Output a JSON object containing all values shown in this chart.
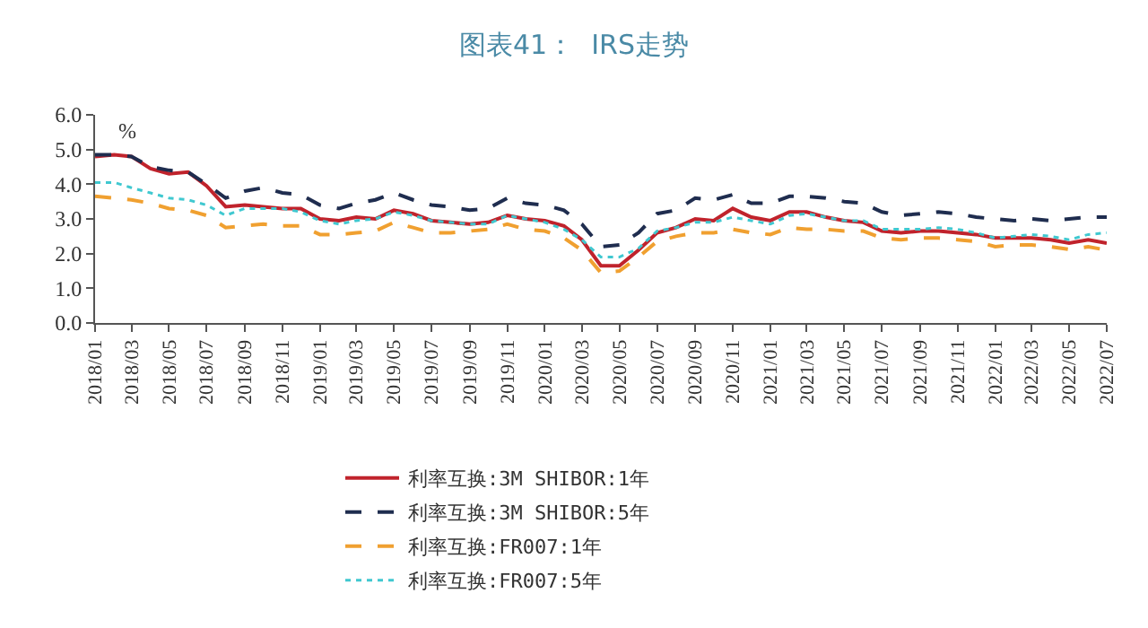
{
  "chart_data": {
    "type": "line",
    "title": "图表41：  IRS走势",
    "ylabel": "%",
    "x": [
      "2018-01",
      "2018-02",
      "2018-03",
      "2018-04",
      "2018-05",
      "2018-06",
      "2018-07",
      "2018-08",
      "2018-09",
      "2018-10",
      "2018-11",
      "2018-12",
      "2019-01",
      "2019-02",
      "2019-03",
      "2019-04",
      "2019-05",
      "2019-06",
      "2019-07",
      "2019-08",
      "2019-09",
      "2019-10",
      "2019-11",
      "2019-12",
      "2020-01",
      "2020-02",
      "2020-03",
      "2020-04",
      "2020-05",
      "2020-06",
      "2020-07",
      "2020-08",
      "2020-09",
      "2020-10",
      "2020-11",
      "2020-12",
      "2021-01",
      "2021-02",
      "2021-03",
      "2021-04",
      "2021-05",
      "2021-06",
      "2021-07",
      "2021-08",
      "2021-09",
      "2021-10",
      "2021-11",
      "2021-12",
      "2022-01",
      "2022-02",
      "2022-03",
      "2022-04",
      "2022-05",
      "2022-06",
      "2022-07"
    ],
    "series": [
      {
        "name": "利率互换:3M SHIBOR:1年",
        "color": "#c0232c",
        "line_style": "solid",
        "values": [
          4.8,
          4.85,
          4.8,
          4.45,
          4.3,
          4.35,
          3.95,
          3.35,
          3.4,
          3.35,
          3.3,
          3.3,
          3.0,
          2.95,
          3.05,
          3.0,
          3.25,
          3.15,
          2.95,
          2.9,
          2.85,
          2.9,
          3.1,
          3.0,
          2.95,
          2.8,
          2.4,
          1.65,
          1.65,
          2.1,
          2.6,
          2.75,
          3.0,
          2.95,
          3.3,
          3.05,
          2.95,
          3.2,
          3.2,
          3.05,
          2.95,
          2.9,
          2.65,
          2.6,
          2.65,
          2.65,
          2.6,
          2.55,
          2.45,
          2.45,
          2.45,
          2.4,
          2.3,
          2.4,
          2.3
        ]
      },
      {
        "name": "利率互换:3M SHIBOR:5年",
        "color": "#1f2d4f",
        "line_style": "dashed",
        "values": [
          4.85,
          4.85,
          4.8,
          4.5,
          4.4,
          4.35,
          4.0,
          3.6,
          3.8,
          3.9,
          3.75,
          3.7,
          3.4,
          3.3,
          3.45,
          3.55,
          3.75,
          3.55,
          3.4,
          3.35,
          3.25,
          3.3,
          3.6,
          3.45,
          3.4,
          3.25,
          2.85,
          2.2,
          2.25,
          2.6,
          3.15,
          3.25,
          3.6,
          3.55,
          3.7,
          3.45,
          3.45,
          3.65,
          3.65,
          3.6,
          3.5,
          3.45,
          3.2,
          3.1,
          3.15,
          3.2,
          3.15,
          3.05,
          3.0,
          2.95,
          3.0,
          2.95,
          3.0,
          3.05,
          3.05
        ]
      },
      {
        "name": "利率互换:FR007:1年",
        "color": "#f0a030",
        "line_style": "dashed",
        "values": [
          3.65,
          3.6,
          3.55,
          3.45,
          3.3,
          3.25,
          3.1,
          2.75,
          2.8,
          2.85,
          2.8,
          2.8,
          2.55,
          2.55,
          2.6,
          2.65,
          2.9,
          2.75,
          2.6,
          2.6,
          2.65,
          2.7,
          2.85,
          2.7,
          2.65,
          2.45,
          2.1,
          1.45,
          1.5,
          1.9,
          2.35,
          2.5,
          2.6,
          2.6,
          2.7,
          2.6,
          2.55,
          2.75,
          2.7,
          2.7,
          2.65,
          2.65,
          2.45,
          2.4,
          2.45,
          2.45,
          2.4,
          2.35,
          2.2,
          2.25,
          2.25,
          2.2,
          2.12,
          2.2,
          2.1
        ]
      },
      {
        "name": "利率互换:FR007:5年",
        "color": "#40c8d0",
        "line_style": "dotted",
        "values": [
          4.05,
          4.05,
          3.9,
          3.75,
          3.6,
          3.55,
          3.4,
          3.1,
          3.3,
          3.3,
          3.3,
          3.2,
          2.95,
          2.85,
          2.95,
          3.0,
          3.2,
          3.1,
          2.95,
          2.9,
          2.85,
          2.85,
          3.1,
          3.0,
          2.9,
          2.7,
          2.4,
          1.9,
          1.9,
          2.15,
          2.65,
          2.75,
          2.9,
          2.9,
          3.05,
          2.95,
          2.85,
          3.1,
          3.15,
          3.05,
          2.95,
          2.95,
          2.7,
          2.7,
          2.7,
          2.75,
          2.7,
          2.6,
          2.45,
          2.5,
          2.55,
          2.5,
          2.4,
          2.55,
          2.6
        ]
      }
    ],
    "xlim": [
      "2018-01",
      "2022-07"
    ],
    "xticks": [
      {
        "value": "2018-01",
        "label": "2018/01"
      },
      {
        "value": "2018-03",
        "label": "2018/03"
      },
      {
        "value": "2018-05",
        "label": "2018/05"
      },
      {
        "value": "2018-07",
        "label": "2018/07"
      },
      {
        "value": "2018-09",
        "label": "2018/09"
      },
      {
        "value": "2018-11",
        "label": "2018/11"
      },
      {
        "value": "2019-01",
        "label": "2019/01"
      },
      {
        "value": "2019-03",
        "label": "2019/03"
      },
      {
        "value": "2019-05",
        "label": "2019/05"
      },
      {
        "value": "2019-07",
        "label": "2019/07"
      },
      {
        "value": "2019-09",
        "label": "2019/09"
      },
      {
        "value": "2019-11",
        "label": "2019/11"
      },
      {
        "value": "2020-01",
        "label": "2020/01"
      },
      {
        "value": "2020-03",
        "label": "2020/03"
      },
      {
        "value": "2020-05",
        "label": "2020/05"
      },
      {
        "value": "2020-07",
        "label": "2020/07"
      },
      {
        "value": "2020-09",
        "label": "2020/09"
      },
      {
        "value": "2020-11",
        "label": "2020/11"
      },
      {
        "value": "2021-01",
        "label": "2021/01"
      },
      {
        "value": "2021-03",
        "label": "2021/03"
      },
      {
        "value": "2021-05",
        "label": "2021/05"
      },
      {
        "value": "2021-07",
        "label": "2021/07"
      },
      {
        "value": "2021-09",
        "label": "2021/09"
      },
      {
        "value": "2021-11",
        "label": "2021/11"
      },
      {
        "value": "2022-01",
        "label": "2022/01"
      },
      {
        "value": "2022-03",
        "label": "2022/03"
      },
      {
        "value": "2022-05",
        "label": "2022/05"
      },
      {
        "value": "2022-07",
        "label": "2022/07"
      }
    ],
    "ylim": [
      0,
      6
    ],
    "yticks": [
      {
        "value": 0,
        "label": "0.0"
      },
      {
        "value": 1,
        "label": "1.0"
      },
      {
        "value": 2,
        "label": "2.0"
      },
      {
        "value": 3,
        "label": "3.0"
      },
      {
        "value": 4,
        "label": "4.0"
      },
      {
        "value": 5,
        "label": "5.0"
      },
      {
        "value": 6,
        "label": "6.0"
      }
    ],
    "grid": false,
    "legend": "bottom",
    "marker": "none"
  }
}
